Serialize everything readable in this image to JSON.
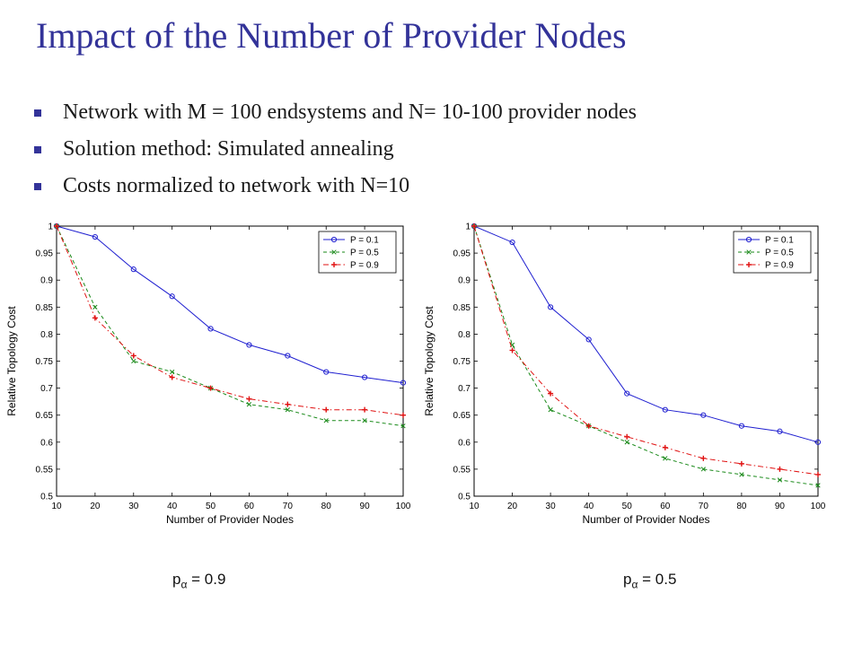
{
  "slide": {
    "title": "Impact of the Number of Provider Nodes",
    "bullets": [
      "Network with M = 100 endsystems and N= 10-100 provider nodes",
      "Solution method: Simulated annealing",
      "Costs normalized to network with N=10"
    ],
    "captions": [
      {
        "base": "p",
        "sub": "α",
        "value": "= 0.9"
      },
      {
        "base": "p",
        "sub": "α",
        "value": "= 0.5"
      }
    ]
  },
  "chart_data": [
    {
      "type": "line",
      "title": "",
      "xlabel": "Number of Provider Nodes",
      "ylabel": "Relative Topology Cost",
      "x": [
        10,
        20,
        30,
        40,
        50,
        60,
        70,
        80,
        90,
        100
      ],
      "xlim": [
        10,
        100
      ],
      "ylim": [
        0.5,
        1
      ],
      "xticks": [
        "10",
        "20",
        "30",
        "40",
        "50",
        "60",
        "70",
        "80",
        "90",
        "100"
      ],
      "yticks": [
        "0.5",
        "0.55",
        "0.6",
        "0.65",
        "0.7",
        "0.75",
        "0.8",
        "0.85",
        "0.9",
        "0.95",
        "1"
      ],
      "grid": false,
      "legend": "top-right",
      "series": [
        {
          "name": "P = 0.1",
          "color": "#1f1fd0",
          "dash": "solid",
          "marker": "circle",
          "values": [
            1.0,
            0.98,
            0.92,
            0.87,
            0.81,
            0.78,
            0.76,
            0.73,
            0.72,
            0.71
          ]
        },
        {
          "name": "P = 0.5",
          "color": "#1a8a1a",
          "dash": "dashed",
          "marker": "x",
          "values": [
            1.0,
            0.85,
            0.75,
            0.73,
            0.7,
            0.67,
            0.66,
            0.64,
            0.64,
            0.63
          ]
        },
        {
          "name": "P = 0.9",
          "color": "#e01010",
          "dash": "dashdot",
          "marker": "plus",
          "values": [
            1.0,
            0.83,
            0.76,
            0.72,
            0.7,
            0.68,
            0.67,
            0.66,
            0.66,
            0.65
          ]
        }
      ]
    },
    {
      "type": "line",
      "title": "",
      "xlabel": "Number of Provider Nodes",
      "ylabel": "Relative Topology Cost",
      "x": [
        10,
        20,
        30,
        40,
        50,
        60,
        70,
        80,
        90,
        100
      ],
      "xlim": [
        10,
        100
      ],
      "ylim": [
        0.5,
        1
      ],
      "xticks": [
        "10",
        "20",
        "30",
        "40",
        "50",
        "60",
        "70",
        "80",
        "90",
        "100"
      ],
      "yticks": [
        "0.5",
        "0.55",
        "0.6",
        "0.65",
        "0.7",
        "0.75",
        "0.8",
        "0.85",
        "0.9",
        "0.95",
        "1"
      ],
      "grid": false,
      "legend": "top-right",
      "series": [
        {
          "name": "P = 0.1",
          "color": "#1f1fd0",
          "dash": "solid",
          "marker": "circle",
          "values": [
            1.0,
            0.97,
            0.85,
            0.79,
            0.69,
            0.66,
            0.65,
            0.63,
            0.62,
            0.6
          ]
        },
        {
          "name": "P = 0.5",
          "color": "#1a8a1a",
          "dash": "dashed",
          "marker": "x",
          "values": [
            1.0,
            0.78,
            0.66,
            0.63,
            0.6,
            0.57,
            0.55,
            0.54,
            0.53,
            0.52
          ]
        },
        {
          "name": "P = 0.9",
          "color": "#e01010",
          "dash": "dashdot",
          "marker": "plus",
          "values": [
            1.0,
            0.77,
            0.69,
            0.63,
            0.61,
            0.59,
            0.57,
            0.56,
            0.55,
            0.54
          ]
        }
      ]
    }
  ]
}
